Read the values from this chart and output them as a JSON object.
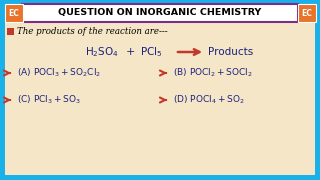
{
  "bg_color": "#f5e6c8",
  "header_bg": "#ffffff",
  "header_text": "QUESTION ON INORGANIC CHEMISTRY",
  "header_border": "#7b2d8b",
  "ec_bg": "#e8732a",
  "ec_text": "EC",
  "outer_border": "#1ab0e8",
  "question_checkbox_color": "#c0392b",
  "question_text": "The products of the reaction are---",
  "arrow_color": "#c0392b",
  "text_color": "#1a237e",
  "bullet_color": "#c0392b",
  "reaction_color": "#1a237e",
  "products_text_color": "#1a237e"
}
